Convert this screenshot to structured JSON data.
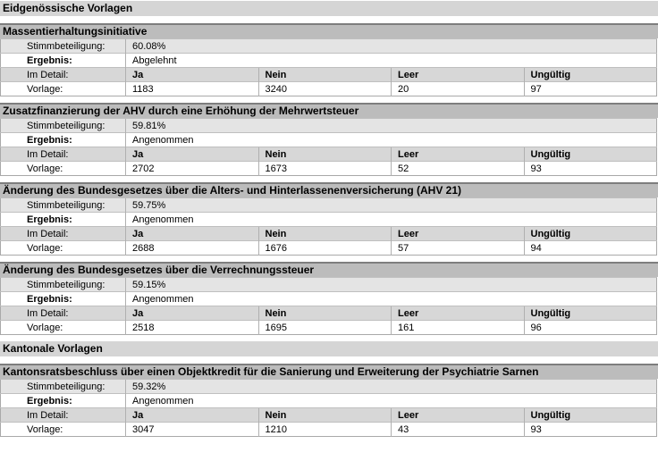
{
  "labels": {
    "turnout": "Stimmbeteiligung:",
    "result": "Ergebnis:",
    "detail": "Im Detail:",
    "proposal": "Vorlage:",
    "yes": "Ja",
    "no": "Nein",
    "blank": "Leer",
    "invalid": "Ungültig"
  },
  "groups": [
    {
      "title": "Eidgenössische Vorlagen",
      "sections": [
        {
          "title": "Massentierhaltungsinitiative",
          "turnout": "60.08%",
          "result": "Abgelehnt",
          "yes": "1183",
          "no": "3240",
          "blank": "20",
          "invalid": "97"
        },
        {
          "title": "Zusatzfinanzierung der AHV durch eine Erhöhung der Mehrwertsteuer",
          "turnout": "59.81%",
          "result": "Angenommen",
          "yes": "2702",
          "no": "1673",
          "blank": "52",
          "invalid": "93"
        },
        {
          "title": "Änderung des Bundesgesetzes über die Alters- und Hinterlassenenversicherung (AHV 21)",
          "turnout": "59.75%",
          "result": "Angenommen",
          "yes": "2688",
          "no": "1676",
          "blank": "57",
          "invalid": "94"
        },
        {
          "title": "Änderung des Bundesgesetzes über die Verrechnungssteuer",
          "turnout": "59.15%",
          "result": "Angenommen",
          "yes": "2518",
          "no": "1695",
          "blank": "161",
          "invalid": "96"
        }
      ]
    },
    {
      "title": "Kantonale Vorlagen",
      "sections": [
        {
          "title": "Kantonsratsbeschluss über einen Objektkredit für die Sanierung und Erweiterung der Psychiatrie Sarnen",
          "turnout": "59.32%",
          "result": "Angenommen",
          "yes": "3047",
          "no": "1210",
          "blank": "43",
          "invalid": "93"
        }
      ]
    }
  ]
}
